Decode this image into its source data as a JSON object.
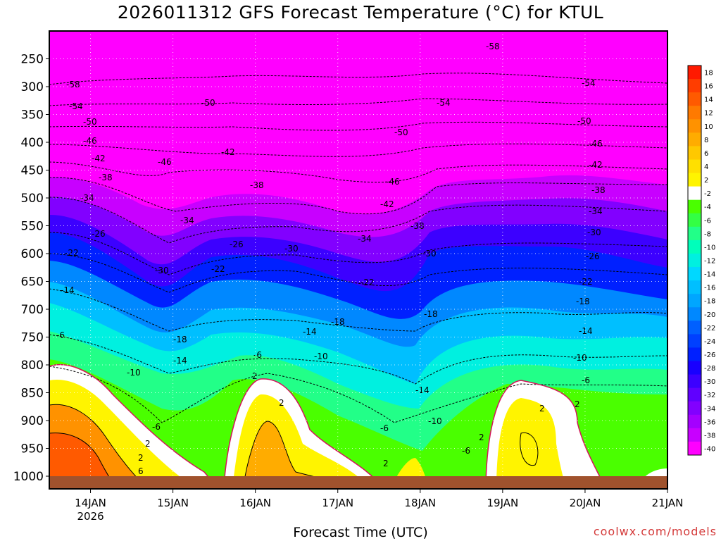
{
  "chart_data": {
    "type": "heatmap",
    "title": "2026011312 GFS Forecast Temperature (°C) for KTUL",
    "xlabel": "Forecast Time (UTC)",
    "ylabel": "",
    "x_ticks": [
      "14JAN",
      "15JAN",
      "16JAN",
      "17JAN",
      "18JAN",
      "19JAN",
      "20JAN",
      "21JAN"
    ],
    "x_tick_sublabel": "2026",
    "x_range_days": [
      13.5,
      21.0
    ],
    "y_ticks": [
      250,
      300,
      350,
      400,
      450,
      500,
      550,
      600,
      650,
      700,
      750,
      800,
      850,
      900,
      950,
      1000
    ],
    "y_range_hpa": [
      200,
      1000
    ],
    "colorbar_levels": [
      18,
      16,
      14,
      12,
      10,
      8,
      6,
      4,
      2,
      -2,
      -4,
      -6,
      -8,
      -10,
      -12,
      -14,
      -16,
      -18,
      -20,
      -22,
      -24,
      -26,
      -28,
      -30,
      -32,
      -34,
      -36,
      -38,
      -40
    ],
    "colorbar_colors": [
      "#ff1a00",
      "#ff3d00",
      "#ff5a00",
      "#ff7a00",
      "#ff9200",
      "#ffac00",
      "#ffc800",
      "#ffe000",
      "#fff400",
      "#ffffff",
      "#4aff00",
      "#33ff44",
      "#22ff88",
      "#00ffbb",
      "#00f0e0",
      "#00d8ff",
      "#00bfff",
      "#00a6ff",
      "#0088ff",
      "#0060ff",
      "#0040ff",
      "#0020ff",
      "#1800ff",
      "#3c00ff",
      "#6000ff",
      "#8200ff",
      "#a400ff",
      "#c800ff",
      "#ff00ff"
    ],
    "contour_labels": [
      "-58",
      "-54",
      "-50",
      "-46",
      "-42",
      "-38",
      "-34",
      "-30",
      "-26",
      "-22",
      "-18",
      "-14",
      "-10",
      "-6",
      "2",
      "6"
    ],
    "colors": {
      "ground": "#a0522d",
      "freezing_contour": "#d4145a",
      "contour": "#000000"
    },
    "credit": "coolwx.com/models"
  }
}
